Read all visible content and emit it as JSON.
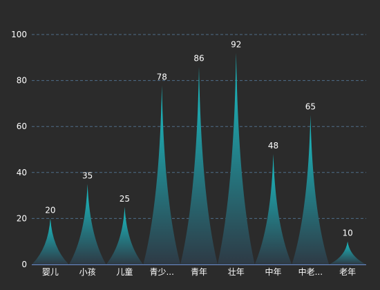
{
  "chart_data": {
    "type": "bar",
    "categories": [
      "婴儿",
      "小孩",
      "儿童",
      "青少...",
      "青年",
      "壮年",
      "中年",
      "中老...",
      "老年"
    ],
    "values": [
      20,
      35,
      25,
      78,
      86,
      92,
      48,
      65,
      10
    ],
    "title": "",
    "xlabel": "",
    "ylabel": "",
    "ylim": [
      0,
      100
    ],
    "yticks": [
      0,
      20,
      40,
      60,
      80,
      100
    ],
    "grid": true,
    "legend": "none",
    "bar_shape": "pictorial-spike",
    "colors": {
      "background": "#2b2b2b",
      "bar_top": "#19c3c9",
      "bar_bottom": "#2e3a45",
      "grid": "#4f6e8a",
      "axis": "#6f8fd0",
      "text": "#ffffff"
    }
  }
}
